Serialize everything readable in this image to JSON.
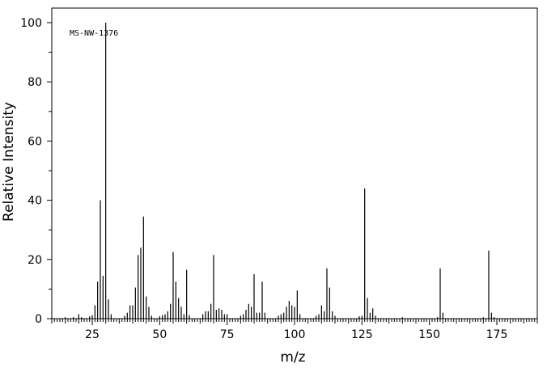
{
  "chart_data": {
    "type": "bar",
    "title": "",
    "annotation": "MS-NW-1376",
    "xlabel": "m/z",
    "ylabel": "Relative Intensity",
    "xlim": [
      10,
      190
    ],
    "ylim": [
      0,
      100
    ],
    "x_ticks": [
      25,
      50,
      75,
      100,
      125,
      150,
      175
    ],
    "y_ticks": [
      0,
      20,
      40,
      60,
      80,
      100
    ],
    "grid": false,
    "legend": "none",
    "peaks": [
      {
        "x": 15,
        "y": 0.5
      },
      {
        "x": 18,
        "y": 0.5
      },
      {
        "x": 20,
        "y": 1.5
      },
      {
        "x": 21,
        "y": 0.5
      },
      {
        "x": 24,
        "y": 0.8
      },
      {
        "x": 25,
        "y": 1.2
      },
      {
        "x": 26,
        "y": 4.5
      },
      {
        "x": 27,
        "y": 12.5
      },
      {
        "x": 28,
        "y": 40
      },
      {
        "x": 29,
        "y": 14.5
      },
      {
        "x": 30,
        "y": 100
      },
      {
        "x": 31,
        "y": 6.5
      },
      {
        "x": 32,
        "y": 1.5
      },
      {
        "x": 37,
        "y": 1
      },
      {
        "x": 38,
        "y": 2
      },
      {
        "x": 39,
        "y": 4.5
      },
      {
        "x": 40,
        "y": 4.5
      },
      {
        "x": 41,
        "y": 10.5
      },
      {
        "x": 42,
        "y": 21.5
      },
      {
        "x": 43,
        "y": 24
      },
      {
        "x": 44,
        "y": 34.5
      },
      {
        "x": 45,
        "y": 7.5
      },
      {
        "x": 46,
        "y": 4
      },
      {
        "x": 47,
        "y": 1
      },
      {
        "x": 50,
        "y": 0.8
      },
      {
        "x": 51,
        "y": 1.2
      },
      {
        "x": 52,
        "y": 1.5
      },
      {
        "x": 53,
        "y": 2.5
      },
      {
        "x": 54,
        "y": 5
      },
      {
        "x": 55,
        "y": 22.5
      },
      {
        "x": 56,
        "y": 12.5
      },
      {
        "x": 57,
        "y": 7
      },
      {
        "x": 58,
        "y": 4
      },
      {
        "x": 59,
        "y": 1.5
      },
      {
        "x": 60,
        "y": 16.5
      },
      {
        "x": 61,
        "y": 1.2
      },
      {
        "x": 66,
        "y": 1.5
      },
      {
        "x": 67,
        "y": 2.5
      },
      {
        "x": 68,
        "y": 2.5
      },
      {
        "x": 69,
        "y": 5
      },
      {
        "x": 70,
        "y": 21.5
      },
      {
        "x": 71,
        "y": 3
      },
      {
        "x": 72,
        "y": 3.5
      },
      {
        "x": 73,
        "y": 3
      },
      {
        "x": 74,
        "y": 1.5
      },
      {
        "x": 75,
        "y": 1.5
      },
      {
        "x": 80,
        "y": 1
      },
      {
        "x": 81,
        "y": 1.5
      },
      {
        "x": 82,
        "y": 3
      },
      {
        "x": 83,
        "y": 5
      },
      {
        "x": 84,
        "y": 4
      },
      {
        "x": 85,
        "y": 15
      },
      {
        "x": 86,
        "y": 2
      },
      {
        "x": 87,
        "y": 2
      },
      {
        "x": 88,
        "y": 12.5
      },
      {
        "x": 89,
        "y": 2
      },
      {
        "x": 94,
        "y": 1
      },
      {
        "x": 95,
        "y": 1.5
      },
      {
        "x": 96,
        "y": 2
      },
      {
        "x": 97,
        "y": 4
      },
      {
        "x": 98,
        "y": 6
      },
      {
        "x": 99,
        "y": 4.5
      },
      {
        "x": 100,
        "y": 4
      },
      {
        "x": 101,
        "y": 9.5
      },
      {
        "x": 102,
        "y": 1.5
      },
      {
        "x": 108,
        "y": 1
      },
      {
        "x": 109,
        "y": 1.5
      },
      {
        "x": 110,
        "y": 4.5
      },
      {
        "x": 111,
        "y": 2.5
      },
      {
        "x": 112,
        "y": 17
      },
      {
        "x": 113,
        "y": 10.5
      },
      {
        "x": 114,
        "y": 2.5
      },
      {
        "x": 115,
        "y": 1
      },
      {
        "x": 124,
        "y": 0.8
      },
      {
        "x": 125,
        "y": 1
      },
      {
        "x": 126,
        "y": 44
      },
      {
        "x": 127,
        "y": 7
      },
      {
        "x": 128,
        "y": 2
      },
      {
        "x": 129,
        "y": 3.5
      },
      {
        "x": 130,
        "y": 1
      },
      {
        "x": 140,
        "y": 0.5
      },
      {
        "x": 153,
        "y": 0.5
      },
      {
        "x": 154,
        "y": 17
      },
      {
        "x": 155,
        "y": 2
      },
      {
        "x": 170,
        "y": 0.5
      },
      {
        "x": 172,
        "y": 23
      },
      {
        "x": 173,
        "y": 2
      },
      {
        "x": 174,
        "y": 0.5
      }
    ]
  }
}
